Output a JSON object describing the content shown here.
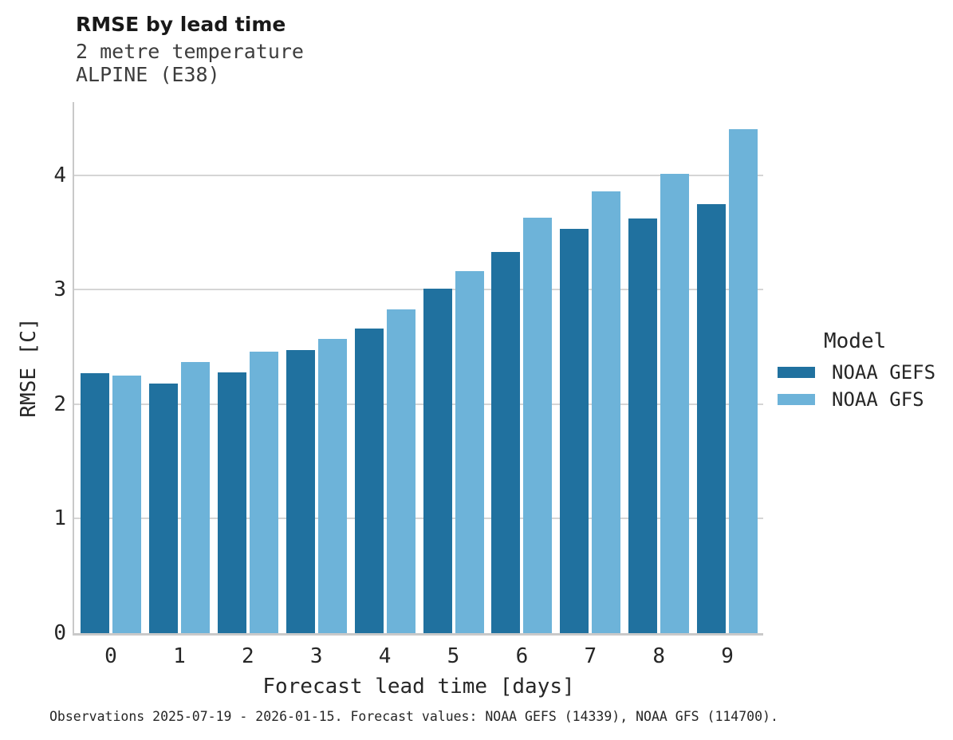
{
  "chart_data": {
    "type": "bar",
    "title": "RMSE by lead time",
    "subtitle": [
      "2 metre temperature",
      "ALPINE (E38)"
    ],
    "categories": [
      0,
      1,
      2,
      3,
      4,
      5,
      6,
      7,
      8,
      9
    ],
    "series": [
      {
        "name": "NOAA GEFS",
        "color": "#20719f",
        "values": [
          2.27,
          2.18,
          2.28,
          2.47,
          2.66,
          3.01,
          3.33,
          3.53,
          3.62,
          3.75
        ]
      },
      {
        "name": "NOAA GFS",
        "color": "#6db3d9",
        "values": [
          2.25,
          2.37,
          2.46,
          2.57,
          2.83,
          3.16,
          3.63,
          3.86,
          4.01,
          4.4
        ]
      }
    ],
    "xlabel": "Forecast lead time [days]",
    "ylabel": "RMSE [C]",
    "ylim": [
      0,
      4.64
    ],
    "yticks": [
      0,
      1,
      2,
      3,
      4
    ],
    "grid": "horizontal",
    "grid_color": "#d5d5d5",
    "axis_color": "#c9c9c9",
    "legend": {
      "title": "Model",
      "position": "right"
    },
    "caption": "Observations 2025-07-19 - 2026-01-15. Forecast values: NOAA GEFS (14339), NOAA GFS (114700)."
  }
}
